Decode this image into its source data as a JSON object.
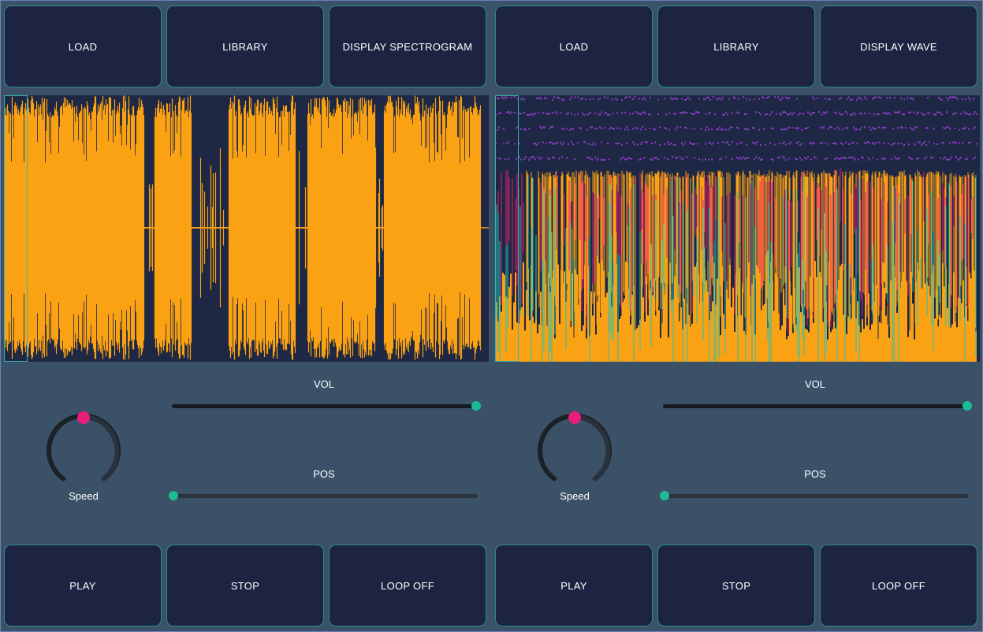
{
  "colors": {
    "background": "#3b5168",
    "button_bg": "#1c2442",
    "button_border": "#2c8a8a",
    "display_bg": "#1e2743",
    "waveform": "#fba214",
    "spectro_teal": "#22c4b4",
    "spectro_magenta": "#e0206e",
    "spectro_purple": "#8a3cc6",
    "knob_indicator": "#e91e7a",
    "slider_thumb": "#1dbb94"
  },
  "decks": [
    {
      "top_buttons": [
        "LOAD",
        "LIBRARY",
        "DISPLAY SPECTROGRAM"
      ],
      "display_type": "waveform",
      "knob": {
        "label": "Speed",
        "value": 0.5
      },
      "vol": {
        "label": "VOL",
        "value": 1.0
      },
      "pos": {
        "label": "POS",
        "value": 0.0
      },
      "bottom_buttons": [
        "PLAY",
        "STOP",
        "LOOP OFF"
      ]
    },
    {
      "top_buttons": [
        "LOAD",
        "LIBRARY",
        "DISPLAY WAVE"
      ],
      "display_type": "spectrogram",
      "knob": {
        "label": "Speed",
        "value": 0.5
      },
      "vol": {
        "label": "VOL",
        "value": 1.0
      },
      "pos": {
        "label": "POS",
        "value": 0.0
      },
      "bottom_buttons": [
        "PLAY",
        "STOP",
        "LOOP OFF"
      ]
    }
  ]
}
